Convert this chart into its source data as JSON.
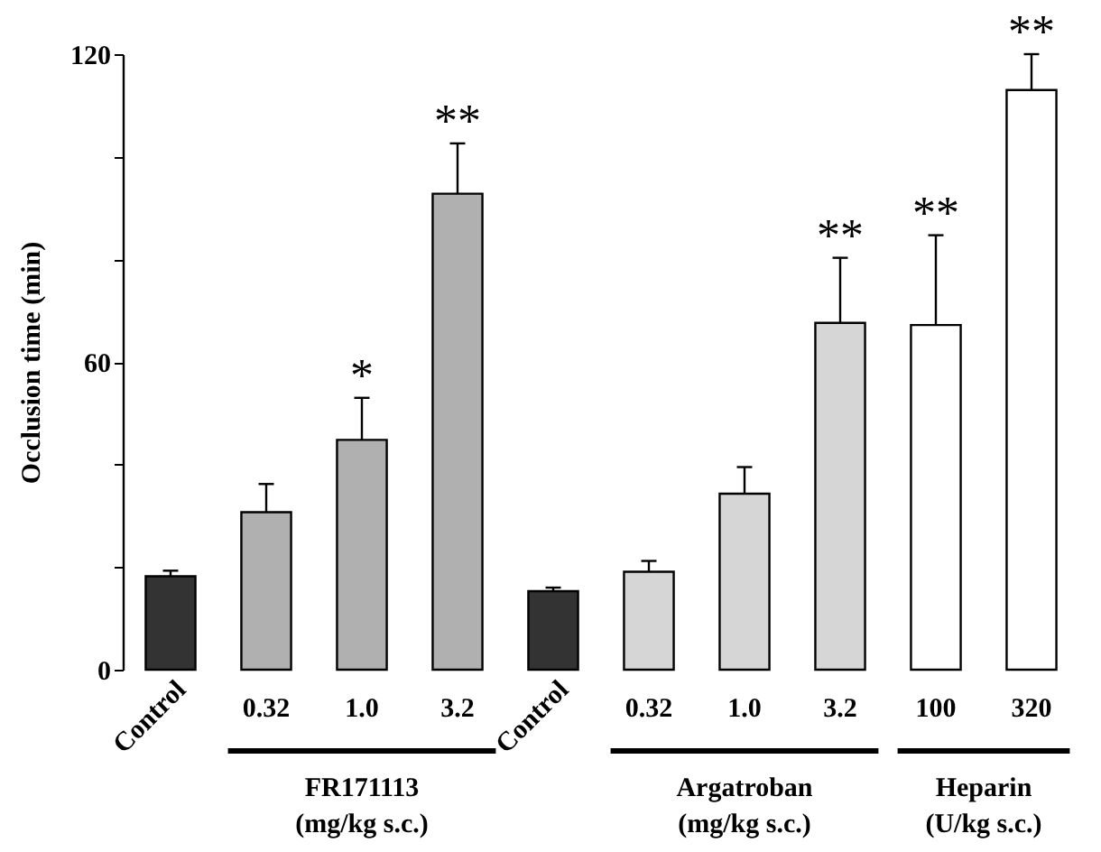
{
  "chart_data": {
    "type": "bar",
    "ylabel": "Occlusion time (min)",
    "categories": [
      "Control",
      "0.32",
      "1.0",
      "3.2",
      "Control",
      "0.32",
      "1.0",
      "3.2",
      "100",
      "320"
    ],
    "values": [
      18.2,
      30.7,
      44.8,
      92.8,
      15.3,
      19.1,
      34.3,
      67.6,
      67.2,
      113.0
    ],
    "errors": [
      [
        18.2,
        19.3
      ],
      [
        30.7,
        36.2
      ],
      [
        44.8,
        53.0
      ],
      [
        92.8,
        102.6
      ],
      [
        15.3,
        16.0
      ],
      [
        19.1,
        21.2
      ],
      [
        34.3,
        39.5
      ],
      [
        67.6,
        80.3
      ],
      [
        67.2,
        84.7
      ],
      [
        113.0,
        120.0
      ]
    ],
    "colors": [
      "#333333",
      "#b0b0b0",
      "#b0b0b0",
      "#b0b0b0",
      "#333333",
      "#d6d6d6",
      "#d6d6d6",
      "#d6d6d6",
      "#ffffff",
      "#ffffff"
    ],
    "value_labels": [
      null,
      null,
      "*",
      "**",
      null,
      null,
      null,
      "**",
      "**",
      "**"
    ],
    "ylim": [
      0,
      120
    ],
    "yticks": [
      0,
      {
        "value": 20,
        "label": null
      },
      {
        "value": 40,
        "label": null
      },
      60,
      {
        "value": 80,
        "label": null
      },
      {
        "value": 100,
        "label": null
      },
      120
    ],
    "annotations": [
      "FR171113\n(mg/kg s.c.)",
      "Argatroban\n(mg/kg s.c.)",
      "Heparin\n(U/kg s.c.)"
    ],
    "grid": false
  }
}
